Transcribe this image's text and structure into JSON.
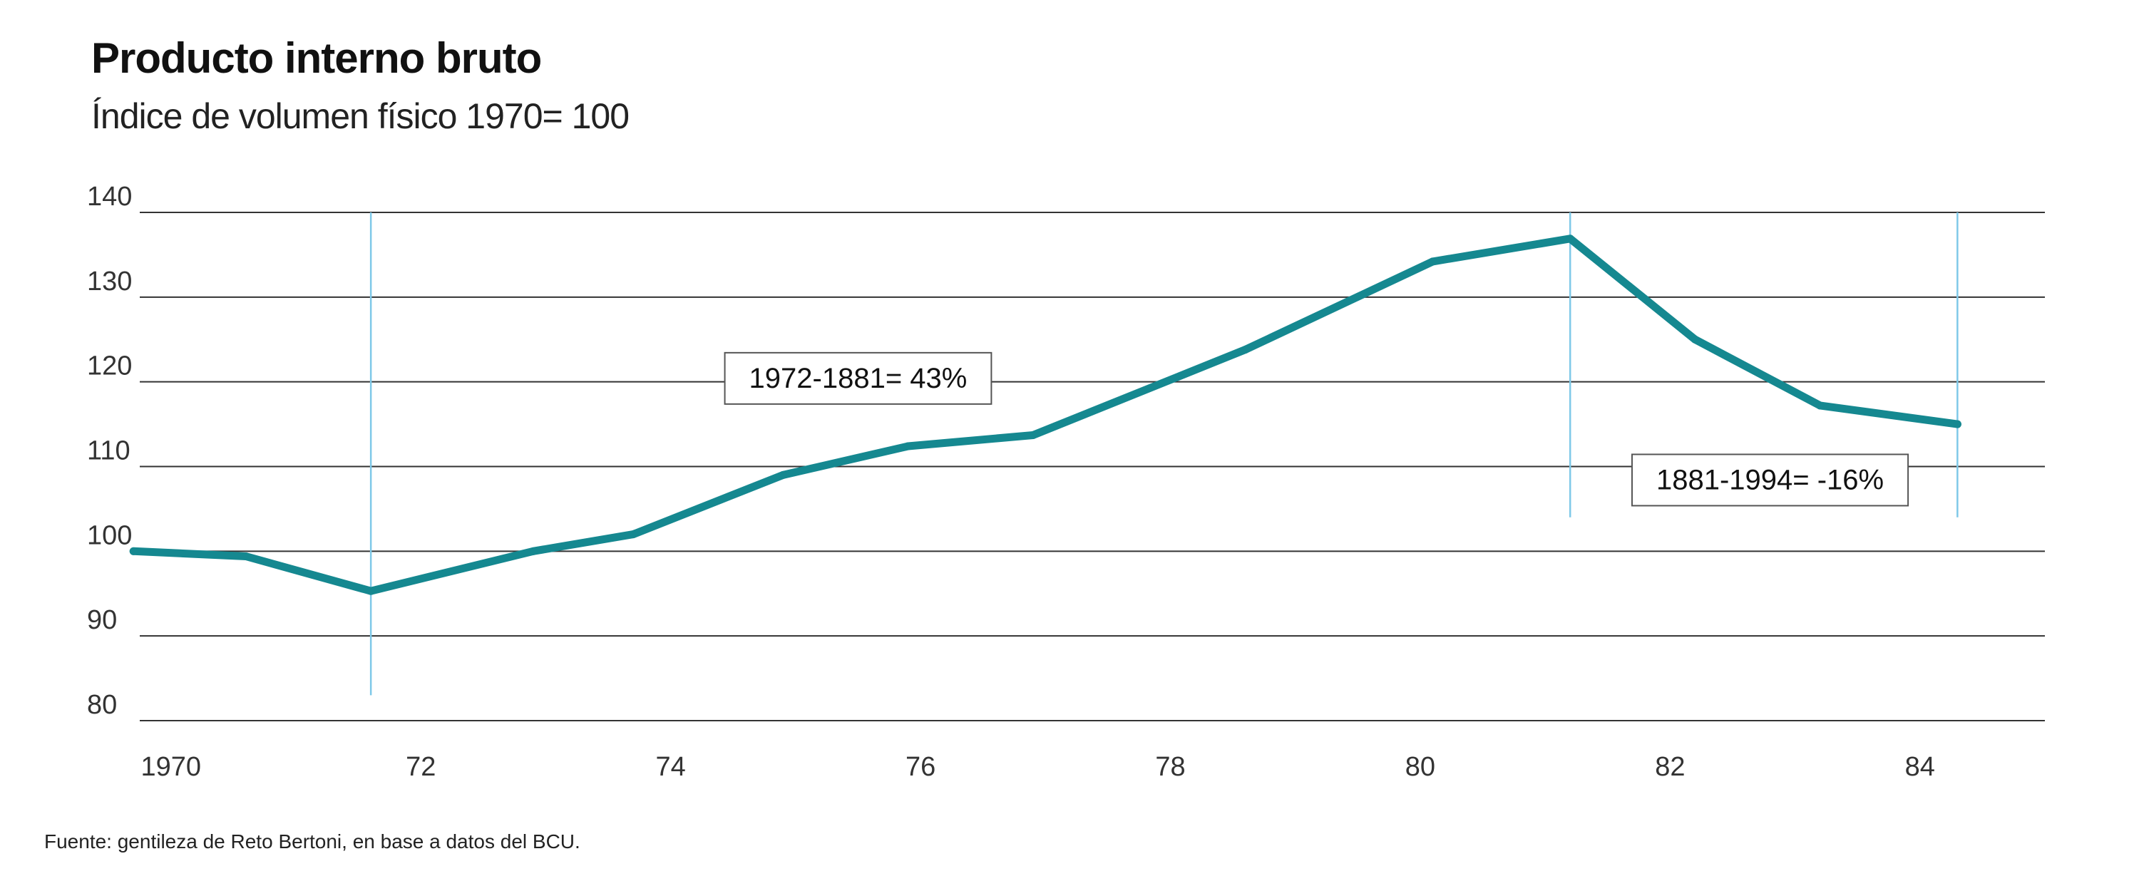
{
  "colors": {
    "line": "#158890",
    "grid": "#333333",
    "marker": "#7fc9e8",
    "text": "#111111",
    "box_border": "#555555"
  },
  "chart_data": {
    "type": "line",
    "title": "Producto interno bruto",
    "subtitle": "Índice de volumen físico 1970= 100",
    "source": "Fuente: gentileza de Reto Bertoni, en base a datos del BCU.",
    "ylim": [
      80,
      140
    ],
    "xlim": [
      1969.75,
      1985.0
    ],
    "yticks": [
      {
        "value": 80,
        "label": "80"
      },
      {
        "value": 90,
        "label": "90"
      },
      {
        "value": 100,
        "label": "100"
      },
      {
        "value": 110,
        "label": "110"
      },
      {
        "value": 120,
        "label": "120"
      },
      {
        "value": 130,
        "label": "130"
      },
      {
        "value": 140,
        "label": "140"
      }
    ],
    "xticks": [
      {
        "value": 1970,
        "label": "1970"
      },
      {
        "value": 1972,
        "label": "72"
      },
      {
        "value": 1974,
        "label": "74"
      },
      {
        "value": 1976,
        "label": "76"
      },
      {
        "value": 1978,
        "label": "78"
      },
      {
        "value": 1980,
        "label": "80"
      },
      {
        "value": 1982,
        "label": "82"
      },
      {
        "value": 1984,
        "label": "84"
      }
    ],
    "grid": true,
    "series": [
      {
        "x": [
          1969.7,
          1970.6,
          1971.6,
          1972.9,
          1973.7,
          1974.9,
          1975.9,
          1976.9,
          1978.6,
          1980.1,
          1981.2,
          1982.2,
          1983.2,
          1984.3
        ],
        "values": [
          100,
          99.4,
          95.3,
          100,
          102,
          109,
          112.4,
          113.7,
          123.8,
          134.2,
          136.9,
          125,
          117.2,
          115
        ]
      }
    ],
    "markers": [
      {
        "x": 1971.6,
        "y_from": 83,
        "y_to": 140
      },
      {
        "x": 1981.2,
        "y_from": 104,
        "y_to": 140
      },
      {
        "x": 1984.3,
        "y_from": 104,
        "y_to": 140
      }
    ],
    "annotations": [
      {
        "text": "1972-1881= 43%",
        "x": 1975.5,
        "y": 120.2
      },
      {
        "text": "1881-1994= -16%",
        "x": 1982.8,
        "y": 108.2
      }
    ]
  }
}
